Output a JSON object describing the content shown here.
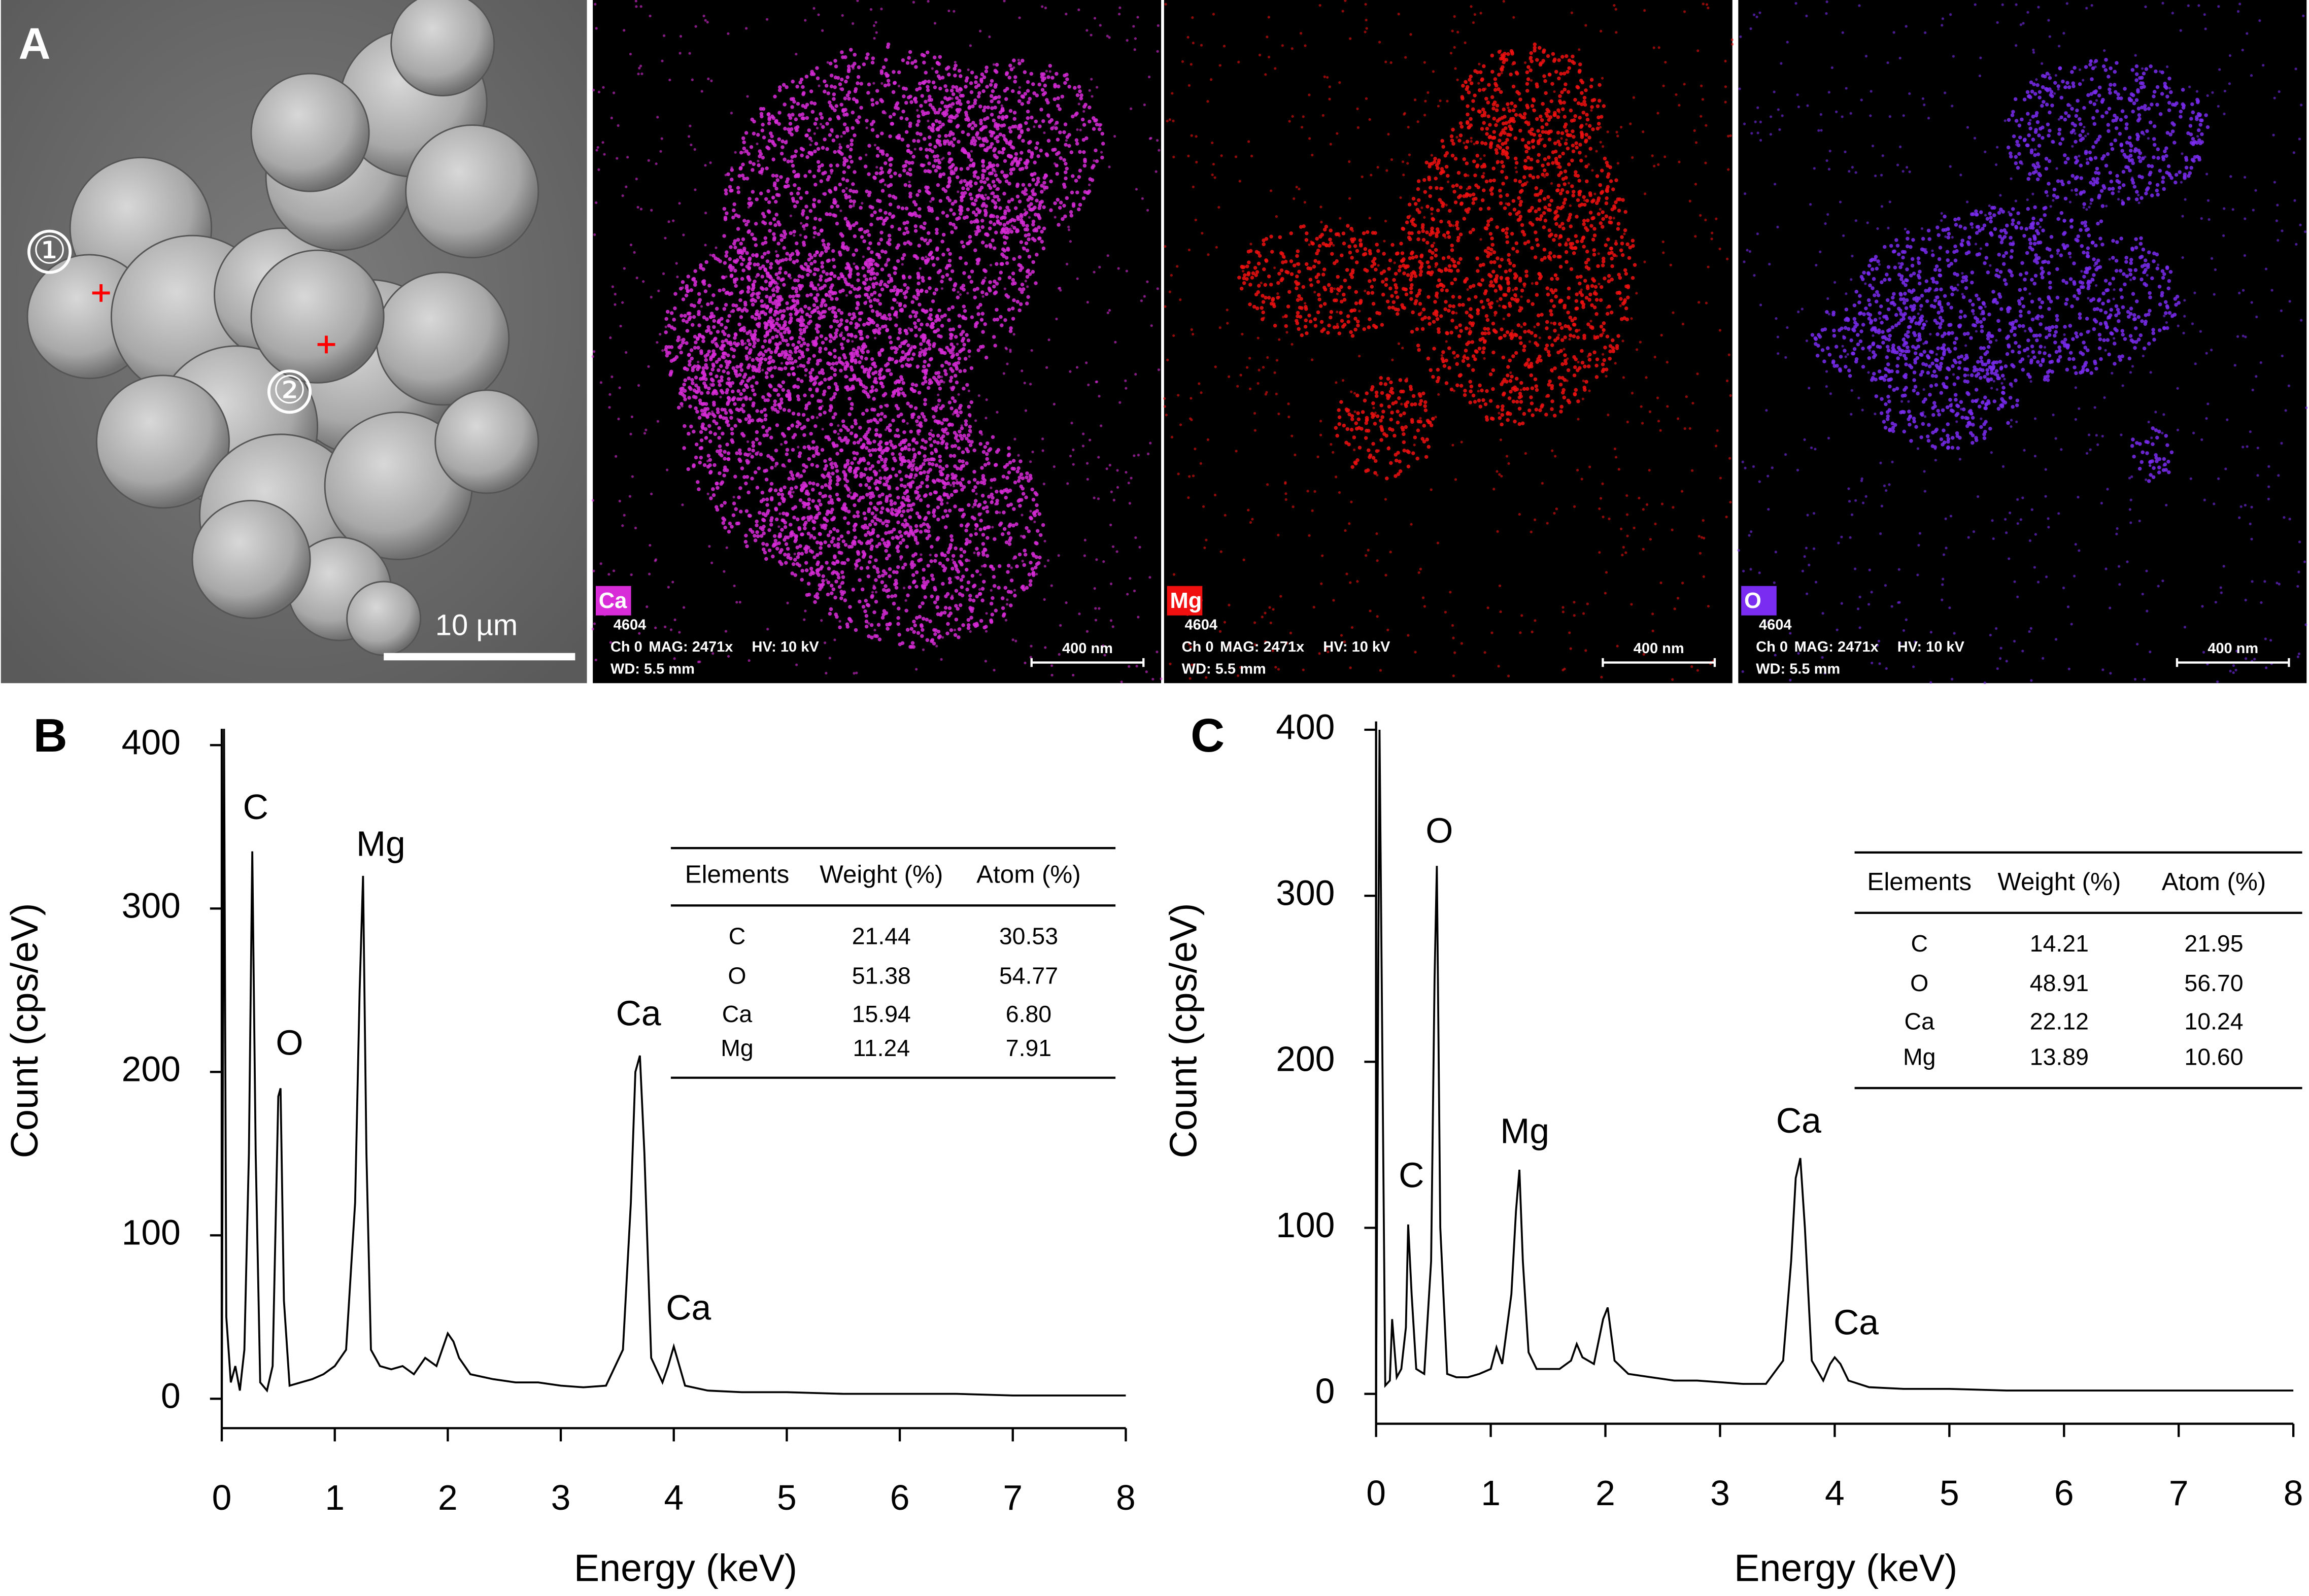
{
  "panel_a": {
    "label": "A",
    "markers": [
      "①",
      "②"
    ],
    "scale_bar": "10 µm",
    "maps": [
      {
        "element": "Ca",
        "color": "#d82cd8",
        "info": [
          "4604",
          "Ch 0",
          "MAG: 2471x",
          "HV: 10 kV",
          "WD: 5.5 mm"
        ],
        "scale_bar": "400 nm"
      },
      {
        "element": "Mg",
        "color": "#f01010",
        "info": [
          "4604",
          "Ch 0",
          "MAG: 2471x",
          "HV: 10 kV",
          "WD: 5.5 mm"
        ],
        "scale_bar": "400 nm"
      },
      {
        "element": "O",
        "color": "#7a2cf0",
        "info": [
          "4604",
          "Ch 0",
          "MAG: 2471x",
          "HV: 10 kV",
          "WD: 5.5 mm"
        ],
        "scale_bar": "400 nm"
      }
    ]
  },
  "chart_data": [
    {
      "type": "line",
      "panel": "B",
      "xlabel": "Energy (keV)",
      "ylabel": "Count (cps/eV)",
      "color": "#000000",
      "x": [
        0,
        0.02,
        0.04,
        0.08,
        0.12,
        0.16,
        0.2,
        0.24,
        0.27,
        0.3,
        0.34,
        0.4,
        0.45,
        0.5,
        0.52,
        0.55,
        0.6,
        0.7,
        0.8,
        0.9,
        1.0,
        1.1,
        1.18,
        1.22,
        1.25,
        1.28,
        1.32,
        1.4,
        1.5,
        1.6,
        1.7,
        1.8,
        1.9,
        2.0,
        2.05,
        2.1,
        2.2,
        2.4,
        2.6,
        2.8,
        3.0,
        3.2,
        3.4,
        3.55,
        3.62,
        3.66,
        3.7,
        3.74,
        3.8,
        3.9,
        3.95,
        4.0,
        4.05,
        4.1,
        4.3,
        4.6,
        5,
        5.5,
        6,
        6.5,
        7,
        7.5,
        8
      ],
      "values": [
        0,
        410,
        50,
        10,
        20,
        5,
        30,
        150,
        335,
        150,
        10,
        5,
        20,
        185,
        190,
        60,
        8,
        10,
        12,
        15,
        20,
        30,
        120,
        250,
        320,
        150,
        30,
        20,
        18,
        20,
        15,
        25,
        20,
        40,
        35,
        25,
        15,
        12,
        10,
        10,
        8,
        7,
        8,
        30,
        120,
        200,
        210,
        150,
        25,
        10,
        20,
        32,
        20,
        8,
        5,
        4,
        4,
        3,
        3,
        3,
        2,
        2,
        2
      ],
      "annotations": [
        "C",
        "O",
        "Mg",
        "Ca",
        "Ca"
      ],
      "xlim": [
        0,
        8
      ],
      "xticks": [
        0,
        1,
        2,
        3,
        4,
        5,
        6,
        7,
        8
      ],
      "ylim": [
        -18,
        410
      ],
      "yticks": [
        0,
        100,
        200,
        300,
        400
      ],
      "table": {
        "header": [
          "Elements",
          "Weight (%)",
          "Atom (%)"
        ],
        "rows": [
          [
            "C",
            "21.44",
            "30.53"
          ],
          [
            "O",
            "51.38",
            "54.77"
          ],
          [
            "Ca",
            "15.94",
            "6.80"
          ],
          [
            "Mg",
            "11.24",
            "7.91"
          ]
        ]
      }
    },
    {
      "type": "line",
      "panel": "C",
      "xlabel": "Energy (keV)",
      "ylabel": "Count (cps/eV)",
      "color": "#000000",
      "x": [
        0,
        0.03,
        0.08,
        0.12,
        0.14,
        0.18,
        0.22,
        0.26,
        0.28,
        0.31,
        0.35,
        0.42,
        0.48,
        0.51,
        0.53,
        0.56,
        0.62,
        0.7,
        0.8,
        0.9,
        1.0,
        1.05,
        1.1,
        1.18,
        1.22,
        1.25,
        1.28,
        1.33,
        1.4,
        1.5,
        1.6,
        1.7,
        1.75,
        1.8,
        1.9,
        1.98,
        2.02,
        2.08,
        2.2,
        2.4,
        2.6,
        2.8,
        3.0,
        3.2,
        3.4,
        3.55,
        3.62,
        3.66,
        3.7,
        3.74,
        3.8,
        3.9,
        3.96,
        4.0,
        4.05,
        4.12,
        4.3,
        4.6,
        5,
        5.5,
        6,
        6.5,
        7,
        7.5,
        8
      ],
      "values": [
        0,
        400,
        5,
        8,
        45,
        10,
        15,
        40,
        102,
        60,
        15,
        12,
        80,
        250,
        318,
        100,
        12,
        10,
        10,
        12,
        15,
        28,
        18,
        60,
        110,
        135,
        80,
        25,
        15,
        15,
        15,
        20,
        30,
        22,
        18,
        45,
        52,
        20,
        12,
        10,
        8,
        8,
        7,
        6,
        6,
        20,
        80,
        130,
        142,
        100,
        20,
        8,
        18,
        22,
        18,
        8,
        4,
        3,
        3,
        2,
        2,
        2,
        2,
        2,
        2
      ],
      "annotations": [
        "C",
        "O",
        "Mg",
        "Ca",
        "Ca"
      ],
      "xlim": [
        0,
        8
      ],
      "xticks": [
        0,
        1,
        2,
        3,
        4,
        5,
        6,
        7,
        8
      ],
      "ylim": [
        -18,
        405
      ],
      "yticks": [
        0,
        100,
        200,
        300,
        400
      ],
      "table": {
        "header": [
          "Elements",
          "Weight (%)",
          "Atom (%)"
        ],
        "rows": [
          [
            "C",
            "14.21",
            "21.95"
          ],
          [
            "O",
            "48.91",
            "56.70"
          ],
          [
            "Ca",
            "22.12",
            "10.24"
          ],
          [
            "Mg",
            "13.89",
            "10.60"
          ]
        ]
      }
    }
  ]
}
